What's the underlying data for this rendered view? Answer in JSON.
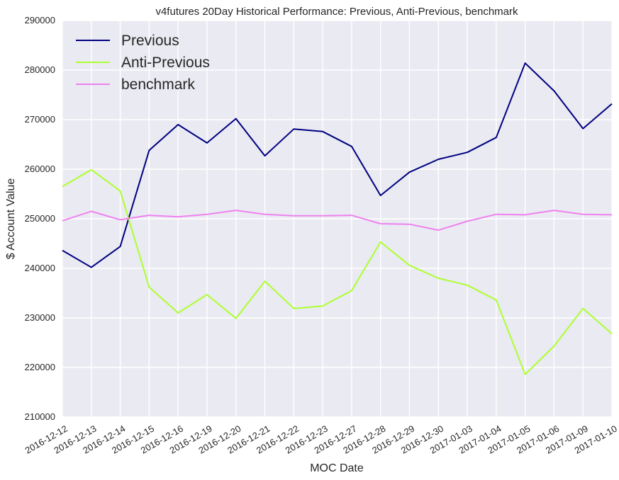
{
  "chart_data": {
    "type": "line",
    "title": "v4futures 20Day Historical Performance: Previous, Anti-Previous, benchmark",
    "xlabel": "MOC Date",
    "ylabel": "$ Account Value",
    "categories": [
      "2016-12-12",
      "2016-12-13",
      "2016-12-14",
      "2016-12-15",
      "2016-12-16",
      "2016-12-19",
      "2016-12-20",
      "2016-12-21",
      "2016-12-22",
      "2016-12-23",
      "2016-12-27",
      "2016-12-28",
      "2016-12-29",
      "2016-12-30",
      "2017-01-03",
      "2017-01-04",
      "2017-01-05",
      "2017-01-06",
      "2017-01-09",
      "2017-01-10"
    ],
    "ylim": [
      210000,
      290000
    ],
    "yticks": [
      "210000",
      "220000",
      "230000",
      "240000",
      "250000",
      "260000",
      "270000",
      "280000",
      "290000"
    ],
    "grid": true,
    "legend_position": "top-left",
    "background": "#eaeaf2",
    "series": [
      {
        "name": "Previous",
        "color": "#000080",
        "values": [
          243600,
          240200,
          244400,
          263800,
          269000,
          265300,
          270200,
          262700,
          268100,
          267600,
          264600,
          254700,
          259400,
          262000,
          263400,
          266400,
          281400,
          275800,
          268200,
          273200
        ]
      },
      {
        "name": "Anti-Previous",
        "color": "#adff2f",
        "values": [
          256500,
          259900,
          255600,
          236200,
          231000,
          234700,
          229900,
          237400,
          231900,
          232400,
          235500,
          245300,
          240600,
          238000,
          236600,
          233600,
          218600,
          224300,
          231900,
          226800
        ]
      },
      {
        "name": "benchmark",
        "color": "#ee82ee",
        "values": [
          249600,
          251500,
          249800,
          250700,
          250400,
          250900,
          251700,
          250900,
          250600,
          250600,
          250700,
          249000,
          248900,
          247700,
          249500,
          250900,
          250800,
          251700,
          250900,
          250800
        ]
      }
    ]
  }
}
